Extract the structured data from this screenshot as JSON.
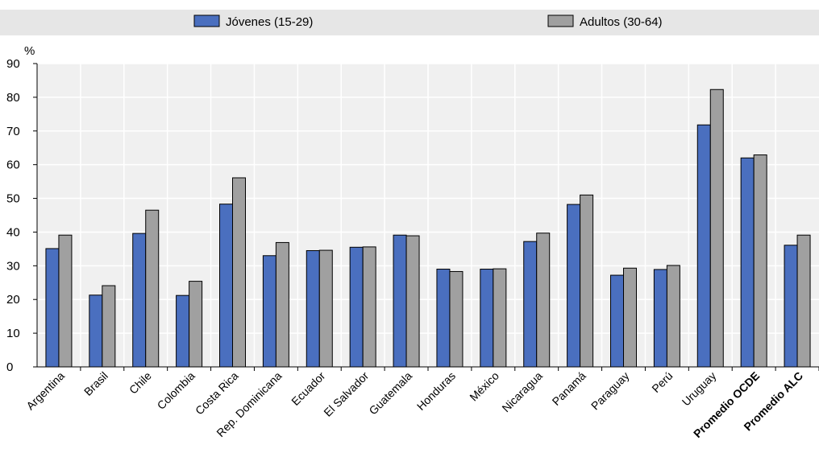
{
  "chart_data": {
    "type": "bar",
    "ylabel": "%",
    "ylim": [
      0,
      90
    ],
    "yticks": [
      0,
      10,
      20,
      30,
      40,
      50,
      60,
      70,
      80,
      90
    ],
    "grid": true,
    "legend_position": "top",
    "categories": [
      "Argentina",
      "Brasil",
      "Chile",
      "Colombia",
      "Costa Rica",
      "Rep. Dominicana",
      "Ecuador",
      "El Salvador",
      "Guatemala",
      "Honduras",
      "México",
      "Nicaragua",
      "Panamá",
      "Paraguay",
      "Perú",
      "Uruguay",
      "Promedio OCDE",
      "Promedio ALC"
    ],
    "bold_categories": [
      "Promedio OCDE",
      "Promedio ALC"
    ],
    "series": [
      {
        "name": "Jóvenes (15-29)",
        "color": "#4a6fbf",
        "values": [
          35.1,
          21.3,
          39.6,
          21.2,
          48.3,
          33.0,
          34.5,
          35.5,
          39.1,
          29.0,
          29.0,
          37.2,
          48.2,
          27.2,
          28.9,
          71.8,
          62.0,
          36.1
        ]
      },
      {
        "name": "Adultos (30-64)",
        "color": "#a0a0a0",
        "values": [
          39.1,
          24.1,
          46.5,
          25.4,
          56.1,
          36.9,
          34.6,
          35.6,
          38.9,
          28.3,
          29.1,
          39.7,
          51.0,
          29.3,
          30.1,
          82.3,
          62.9,
          39.1
        ]
      }
    ]
  },
  "colors": {
    "band": "#e6e6e6",
    "plot_bg": "#f0f0f0",
    "grid": "#ffffff",
    "axis": "#000000"
  }
}
